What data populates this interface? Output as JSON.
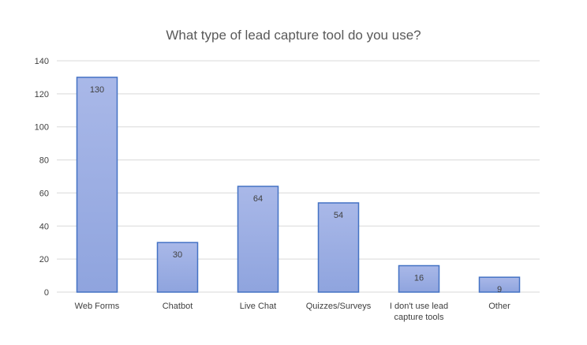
{
  "chart_data": {
    "type": "bar",
    "title": "What type of lead capture tool do you use?",
    "xlabel": "",
    "ylabel": "",
    "categories": [
      [
        "Web Forms"
      ],
      [
        "Chatbot"
      ],
      [
        "Live Chat"
      ],
      [
        "Quizzes/Surveys"
      ],
      [
        "I don't use lead",
        "capture tools"
      ],
      [
        "Other"
      ]
    ],
    "values": [
      130,
      30,
      64,
      54,
      16,
      9
    ],
    "data_labels": [
      "130",
      "30",
      "64",
      "54",
      "16",
      "9"
    ],
    "y_ticks": [
      "0",
      "20",
      "40",
      "60",
      "80",
      "100",
      "120",
      "140"
    ],
    "ylim": [
      0,
      140
    ],
    "grid": true,
    "legend": "none",
    "colors": {
      "bar_top": "#a9b8e8",
      "bar_bottom": "#8fa4de",
      "bar_stroke": "#4472c4"
    }
  }
}
